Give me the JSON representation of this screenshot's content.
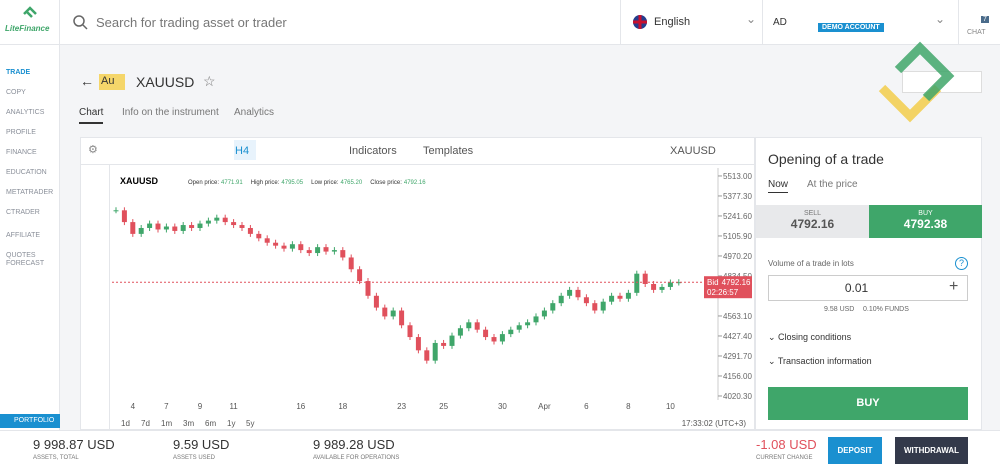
{
  "header": {
    "logo": "LiteFinance",
    "search": "Search for trading asset or trader",
    "language": "English",
    "account": "AD",
    "account_type": "DEMO ACCOUNT",
    "chat": "CHAT",
    "chat_count": "7"
  },
  "sidebar": {
    "items": [
      "TRADE",
      "COPY",
      "ANALYTICS",
      "PROFILE",
      "FINANCE",
      "EDUCATION",
      "METATRADER",
      "CTRADER",
      "AFFILIATE",
      "QUOTES FORECAST"
    ],
    "portfolio": "PORTFOLIO"
  },
  "instrument": {
    "badge": "Au",
    "symbol": "XAUUSD",
    "tabs": [
      "Chart",
      "Info on the instrument",
      "Analytics"
    ]
  },
  "toolbar": {
    "timeframe": "H4",
    "indicators": "Indicators",
    "templates": "Templates",
    "symbol": "XAUUSD"
  },
  "chart_data": {
    "type": "candlestick",
    "title": "XAUUSD",
    "info": [
      {
        "label": "Open price:",
        "value": "4771.91"
      },
      {
        "label": "High price:",
        "value": "4795.05"
      },
      {
        "label": "Low price:",
        "value": "4765.20"
      },
      {
        "label": "Close price:",
        "value": "4792.16"
      }
    ],
    "categories": [
      null,
      null,
      "4",
      null,
      null,
      null,
      "7",
      null,
      null,
      null,
      "9",
      null,
      null,
      null,
      "11",
      null,
      null,
      null,
      null,
      null,
      null,
      null,
      "16",
      null,
      null,
      null,
      null,
      "18",
      null,
      null,
      null,
      null,
      null,
      null,
      "23",
      null,
      null,
      null,
      null,
      "25",
      null,
      null,
      null,
      null,
      null,
      null,
      "30",
      null,
      null,
      null,
      null,
      "Apr",
      null,
      null,
      null,
      null,
      "6",
      null,
      null,
      null,
      null,
      "8",
      null,
      null,
      null,
      null,
      "10",
      null
    ],
    "values": [
      5280,
      5200,
      5120,
      5160,
      5190,
      5150,
      5170,
      5140,
      5180,
      5160,
      5190,
      5210,
      5230,
      5200,
      5180,
      5160,
      5120,
      5090,
      5060,
      5040,
      5020,
      5050,
      5010,
      4990,
      5030,
      5000,
      5010,
      4960,
      4880,
      4800,
      4700,
      4620,
      4560,
      4600,
      4500,
      4420,
      4330,
      4260,
      4380,
      4360,
      4430,
      4480,
      4520,
      4470,
      4420,
      4390,
      4440,
      4470,
      4500,
      4520,
      4560,
      4600,
      4650,
      4700,
      4740,
      4690,
      4650,
      4600,
      4660,
      4700,
      4680,
      4720,
      4850,
      4780,
      4740,
      4760,
      4790,
      4792.16
    ],
    "up_color": "#3fa66a",
    "down_color": "#e0505c",
    "ylim": [
      3993,
      5567
    ],
    "yticks": [
      {
        "value": 5513,
        "label": "5513.00"
      },
      {
        "value": 5377.3,
        "label": "5377.30"
      },
      {
        "value": 5241.6,
        "label": "5241.60"
      },
      {
        "value": 5105.9,
        "label": "5105.90"
      },
      {
        "value": 4970.2,
        "label": "4970.20"
      },
      {
        "value": 4834.5,
        "label": "4834.50"
      },
      {
        "value": 4563.1,
        "label": "4563.10"
      },
      {
        "value": 4427.4,
        "label": "4427.40"
      },
      {
        "value": 4291.7,
        "label": "4291.70"
      },
      {
        "value": 4156,
        "label": "4156.00"
      },
      {
        "value": 4020.3,
        "label": "4020.30"
      }
    ],
    "bid": {
      "label": "Bid",
      "value": 4792.16
    },
    "timer": "02:26:57",
    "ranges": [
      "1d",
      "7d",
      "1m",
      "3m",
      "6m",
      "1y",
      "5y"
    ],
    "time": "17:33:02 (UTC+3)"
  },
  "trade_panel": {
    "title": "Opening of a trade",
    "modes": [
      "Now",
      "At the price"
    ],
    "sell_label": "SELL",
    "sell_price": "4792.16",
    "buy_label": "BUY",
    "buy_price": "4792.38",
    "volume_label": "Volume of a trade in lots",
    "volume": "0.01",
    "cost": "9.58 USD",
    "funds": "0.10% FUNDS",
    "sections": [
      "Closing conditions",
      "Transaction information"
    ],
    "buy_button": "BUY"
  },
  "footer": {
    "stats": [
      {
        "value": "9 998.87 USD",
        "label": "ASSETS, TOTAL"
      },
      {
        "value": "9.59 USD",
        "label": "ASSETS USED"
      },
      {
        "value": "9 989.28 USD",
        "label": "AVAILABLE FOR OPERATIONS"
      }
    ],
    "change": {
      "value": "-1.08 USD",
      "label": "CURRENT CHANGE"
    },
    "deposit": "DEPOSIT",
    "withdrawal": "WITHDRAWAL"
  }
}
